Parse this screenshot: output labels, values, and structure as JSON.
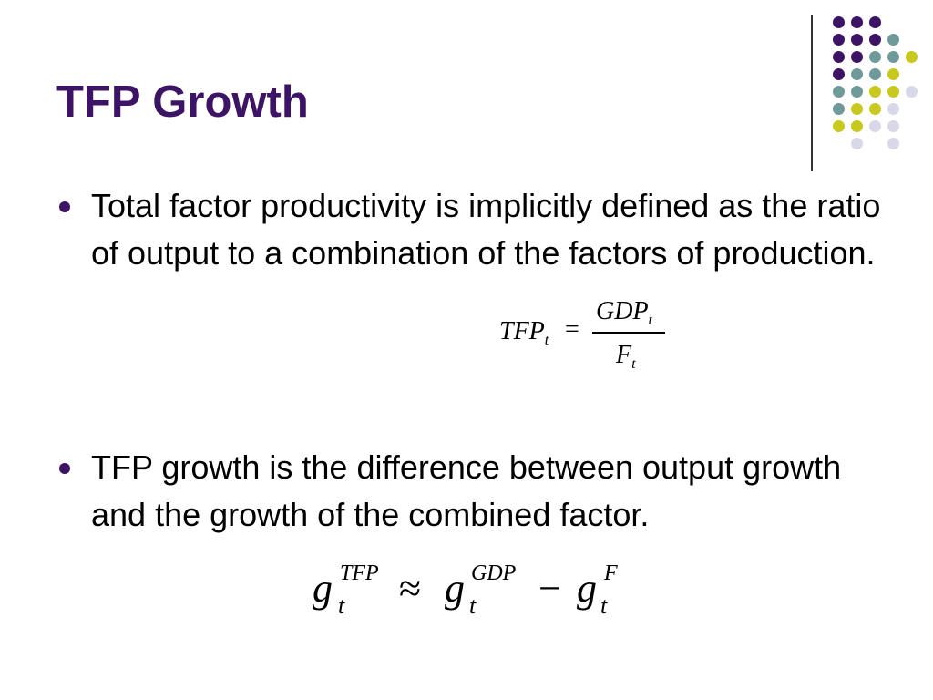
{
  "slide": {
    "title": "TFP Growth",
    "bullets": [
      "Total factor productivity is implicitly defined as the ratio of output to a combination of the factors of production.",
      "TFP growth is the difference between output growth and the growth of the combined factor."
    ],
    "formula1": {
      "lhs": "TFP",
      "lhs_sub": "t",
      "equals": "=",
      "numerator": "GDP",
      "numerator_sub": "t",
      "denominator": "F",
      "denominator_sub": "t"
    },
    "formula2": {
      "g1": "g",
      "g1_sup": "TFP",
      "g1_sub": "t",
      "approx": "≈",
      "g2": "g",
      "g2_sup": "GDP",
      "g2_sub": "t",
      "minus": "−",
      "g3": "g",
      "g3_sup": "F",
      "g3_sub": "t"
    }
  },
  "decor": {
    "title_color": "#3d1465",
    "dot_colors": [
      "#3d1465",
      "#6e9a9a",
      "#c8c81e",
      "#d8d8e8"
    ]
  }
}
